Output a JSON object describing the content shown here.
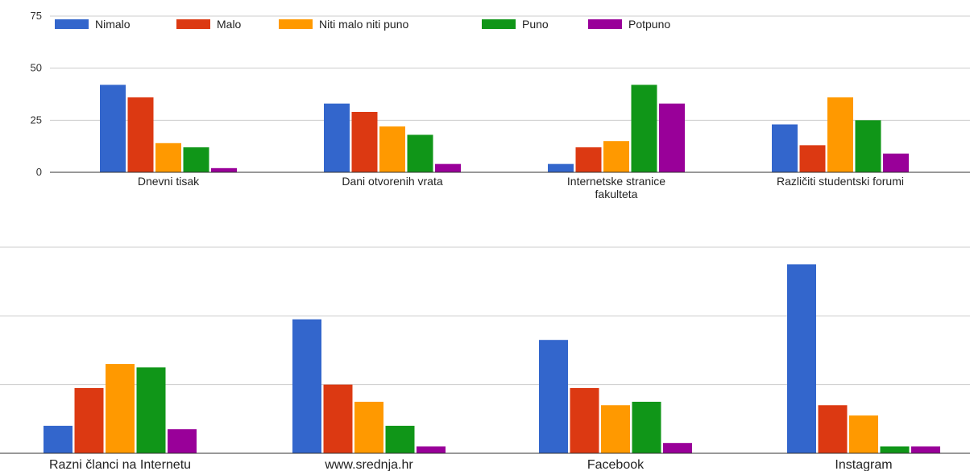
{
  "chart_data": [
    {
      "type": "bar",
      "series_names": [
        "Nimalo",
        "Malo",
        "Niti malo niti puno",
        "Puno",
        "Potpuno"
      ],
      "colors": [
        "#3366cc",
        "#dc3912",
        "#ff9900",
        "#109618",
        "#990099"
      ],
      "categories": [
        [
          "Dnevni tisak"
        ],
        [
          "Dani otvorenih vrata"
        ],
        [
          "Internetske stranice",
          "fakulteta"
        ],
        [
          "Različiti studentski forumi"
        ]
      ],
      "series": [
        {
          "name": "Nimalo",
          "values": [
            42,
            33,
            4,
            23
          ]
        },
        {
          "name": "Malo",
          "values": [
            36,
            29,
            12,
            13
          ]
        },
        {
          "name": "Niti malo niti puno",
          "values": [
            14,
            22,
            15,
            36
          ]
        },
        {
          "name": "Puno",
          "values": [
            12,
            18,
            42,
            25
          ]
        },
        {
          "name": "Potpuno",
          "values": [
            2,
            4,
            33,
            9
          ]
        }
      ],
      "yticks": [
        0,
        25,
        50,
        75
      ],
      "ylim": [
        0,
        75
      ],
      "grid": true,
      "legend": "top-left"
    },
    {
      "type": "bar",
      "categories": [
        [
          "Razni članci na Internetu"
        ],
        [
          "www.srednja.hr"
        ],
        [
          "Facebook"
        ],
        [
          "Instagram"
        ]
      ],
      "series": [
        {
          "name": "Nimalo",
          "values": [
            8,
            39,
            33,
            55
          ]
        },
        {
          "name": "Malo",
          "values": [
            19,
            20,
            19,
            14
          ]
        },
        {
          "name": "Niti malo niti puno",
          "values": [
            26,
            15,
            14,
            11
          ]
        },
        {
          "name": "Puno",
          "values": [
            25,
            8,
            15,
            2
          ]
        },
        {
          "name": "Potpuno",
          "values": [
            7,
            2,
            3,
            2
          ]
        }
      ],
      "ylim": [
        0,
        60
      ],
      "grid": true,
      "legend": "none"
    }
  ]
}
